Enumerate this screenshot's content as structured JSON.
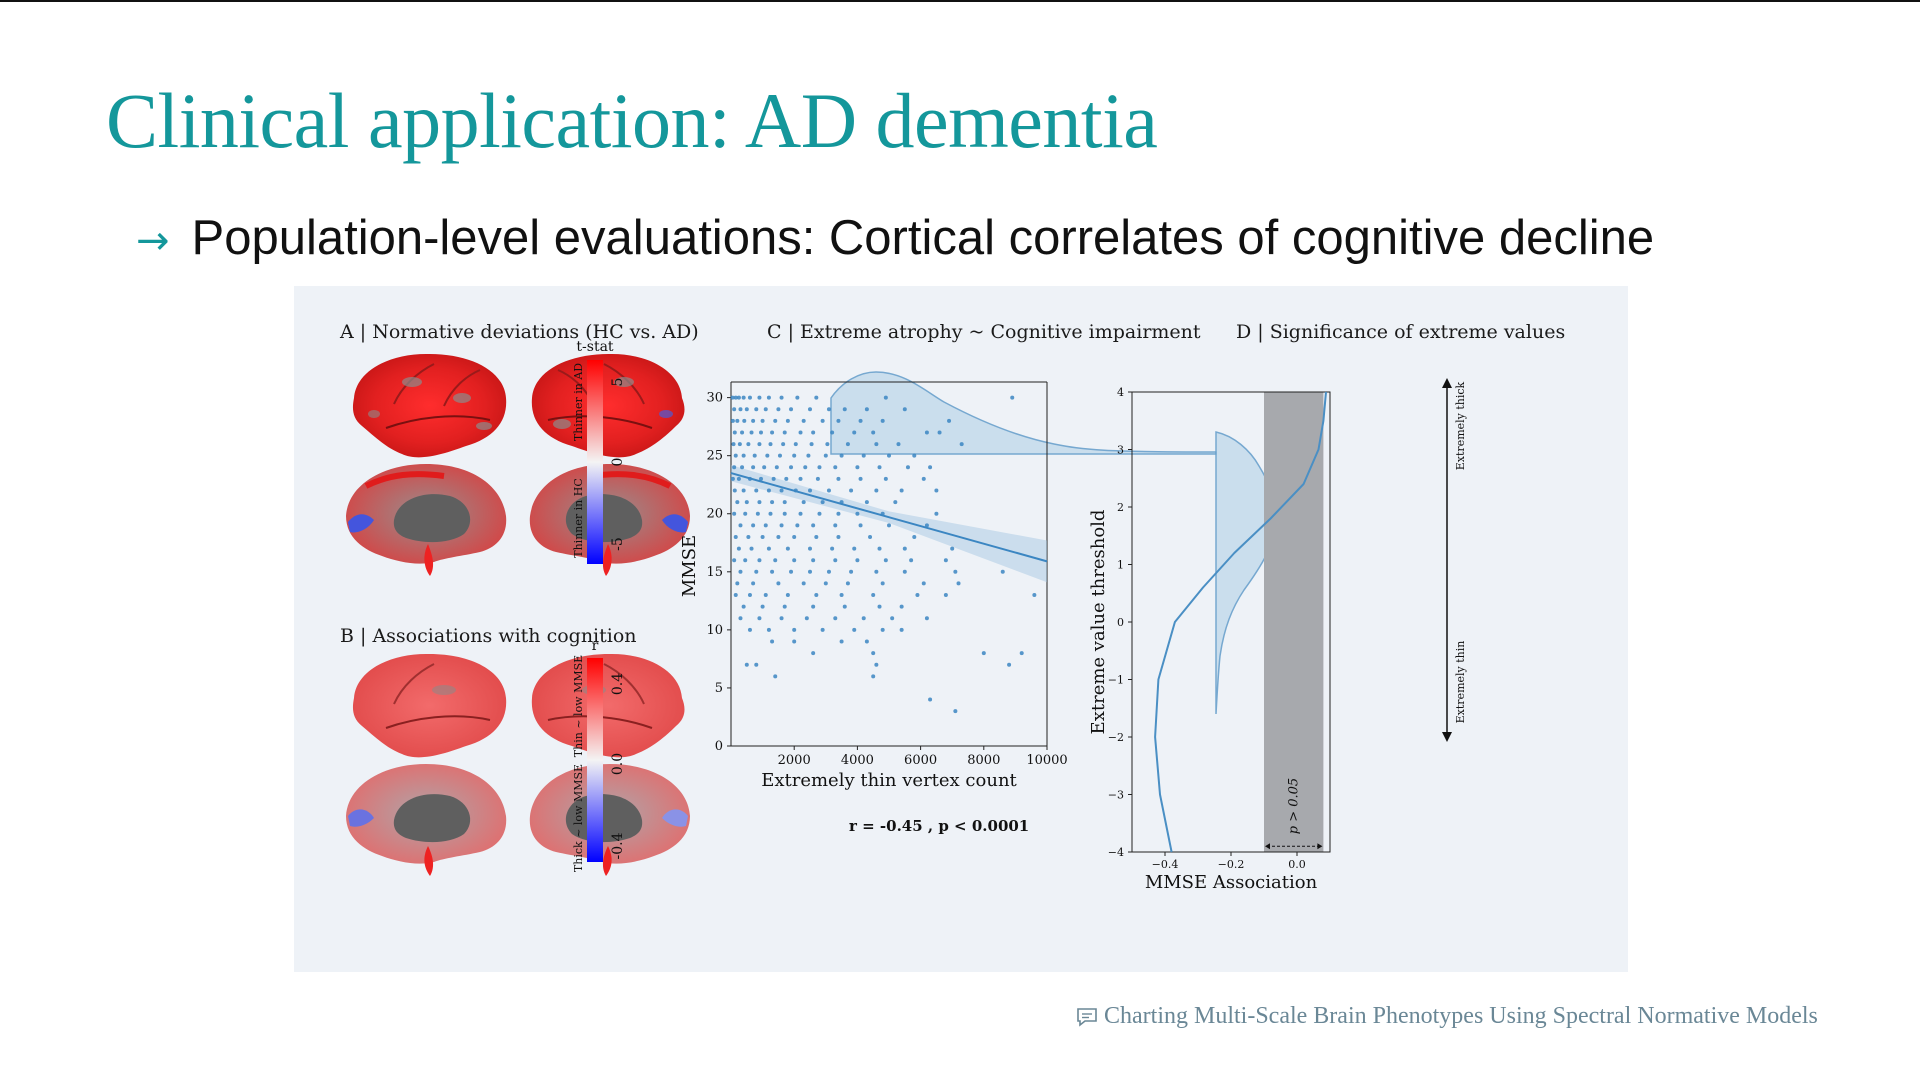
{
  "slide": {
    "title": "Clinical application: AD dementia",
    "bullet_arrow": "→",
    "bullet_text": "Population-level evaluations: Cortical correlates of cognitive decline",
    "footer_icon": "comment-icon",
    "footer_text": "Charting Multi-Scale Brain Phenotypes Using Spectral Normative Models",
    "accent_color": "#14979b"
  },
  "figure": {
    "panel_a": {
      "title": "A | Normative deviations (HC vs. AD)",
      "colorbar_title": "t-stat",
      "ticks": [
        "5",
        "0",
        "-5"
      ],
      "label_top": "Thinner in AD",
      "label_bottom": "Thinner in HC"
    },
    "panel_b": {
      "title": "B | Associations with cognition",
      "colorbar_title": "r",
      "ticks": [
        "0.4",
        "0.0",
        "-0.4"
      ],
      "label_top": "Thin ~ low MMSE",
      "label_bottom": "Thick ~ low MMSE"
    },
    "panel_c": {
      "title": "C | Extreme atrophy ~ Cognitive impairment",
      "annotation": "r = -0.45 , p < 0.0001"
    },
    "panel_d": {
      "title": "D | Significance of extreme values",
      "label_thick": "Extremely thick",
      "label_thin": "Extremely thin",
      "p_label": "p > 0.05"
    }
  },
  "chart_data": [
    {
      "type": "scatter",
      "xlabel": "Extremely thin vertex count",
      "ylabel": "MMSE",
      "xlim": [
        0,
        10000
      ],
      "ylim": [
        0,
        31
      ],
      "x_ticks": [
        2000,
        4000,
        6000,
        8000,
        10000
      ],
      "y_ticks": [
        0,
        5,
        10,
        15,
        20,
        25,
        30
      ],
      "grid": false,
      "regression": {
        "x": [
          0,
          10000
        ],
        "y": [
          23.5,
          15.9
        ]
      },
      "points": [
        [
          50,
          30
        ],
        [
          150,
          30
        ],
        [
          250,
          30
        ],
        [
          400,
          30
        ],
        [
          600,
          30
        ],
        [
          900,
          30
        ],
        [
          1200,
          30
        ],
        [
          1600,
          30
        ],
        [
          2100,
          30
        ],
        [
          2700,
          30
        ],
        [
          4900,
          30
        ],
        [
          8900,
          30
        ],
        [
          100,
          29
        ],
        [
          300,
          29
        ],
        [
          500,
          29
        ],
        [
          800,
          29
        ],
        [
          1100,
          29
        ],
        [
          1500,
          29
        ],
        [
          1900,
          29
        ],
        [
          2500,
          29
        ],
        [
          3100,
          29
        ],
        [
          3600,
          29
        ],
        [
          4300,
          29
        ],
        [
          5500,
          29
        ],
        [
          60,
          28
        ],
        [
          200,
          28
        ],
        [
          420,
          28
        ],
        [
          700,
          28
        ],
        [
          1000,
          28
        ],
        [
          1400,
          28
        ],
        [
          1800,
          28
        ],
        [
          2300,
          28
        ],
        [
          2900,
          28
        ],
        [
          3400,
          28
        ],
        [
          4100,
          28
        ],
        [
          4800,
          28
        ],
        [
          6900,
          28
        ],
        [
          120,
          27
        ],
        [
          350,
          27
        ],
        [
          650,
          27
        ],
        [
          950,
          27
        ],
        [
          1300,
          27
        ],
        [
          1700,
          27
        ],
        [
          2200,
          27
        ],
        [
          2600,
          27
        ],
        [
          3200,
          27
        ],
        [
          3900,
          27
        ],
        [
          4500,
          27
        ],
        [
          6200,
          27
        ],
        [
          6600,
          27
        ],
        [
          80,
          26
        ],
        [
          280,
          26
        ],
        [
          550,
          26
        ],
        [
          900,
          26
        ],
        [
          1250,
          26
        ],
        [
          1650,
          26
        ],
        [
          2050,
          26
        ],
        [
          2550,
          26
        ],
        [
          3050,
          26
        ],
        [
          3700,
          26
        ],
        [
          4600,
          26
        ],
        [
          5300,
          26
        ],
        [
          7300,
          26
        ],
        [
          150,
          25
        ],
        [
          400,
          25
        ],
        [
          750,
          25
        ],
        [
          1150,
          25
        ],
        [
          1550,
          25
        ],
        [
          2000,
          25
        ],
        [
          2450,
          25
        ],
        [
          3000,
          25
        ],
        [
          3500,
          25
        ],
        [
          4200,
          25
        ],
        [
          5000,
          25
        ],
        [
          5800,
          25
        ],
        [
          100,
          24
        ],
        [
          350,
          24
        ],
        [
          700,
          24
        ],
        [
          1050,
          24
        ],
        [
          1450,
          24
        ],
        [
          1900,
          24
        ],
        [
          2350,
          24
        ],
        [
          2800,
          24
        ],
        [
          3300,
          24
        ],
        [
          4000,
          24
        ],
        [
          4700,
          24
        ],
        [
          5600,
          24
        ],
        [
          6300,
          24
        ],
        [
          60,
          23
        ],
        [
          250,
          23
        ],
        [
          600,
          23
        ],
        [
          950,
          23
        ],
        [
          1350,
          23
        ],
        [
          1750,
          23
        ],
        [
          2200,
          23
        ],
        [
          2750,
          23
        ],
        [
          3400,
          23
        ],
        [
          4100,
          23
        ],
        [
          4900,
          23
        ],
        [
          6100,
          23
        ],
        [
          120,
          22
        ],
        [
          400,
          22
        ],
        [
          800,
          22
        ],
        [
          1200,
          22
        ],
        [
          1600,
          22
        ],
        [
          2050,
          22
        ],
        [
          2500,
          22
        ],
        [
          3100,
          22
        ],
        [
          3800,
          22
        ],
        [
          4600,
          22
        ],
        [
          5400,
          22
        ],
        [
          6500,
          22
        ],
        [
          200,
          21
        ],
        [
          500,
          21
        ],
        [
          900,
          21
        ],
        [
          1300,
          21
        ],
        [
          1700,
          21
        ],
        [
          2300,
          21
        ],
        [
          2900,
          21
        ],
        [
          3500,
          21
        ],
        [
          4300,
          21
        ],
        [
          5200,
          21
        ],
        [
          100,
          20
        ],
        [
          450,
          20
        ],
        [
          850,
          20
        ],
        [
          1250,
          20
        ],
        [
          1700,
          20
        ],
        [
          2200,
          20
        ],
        [
          2800,
          20
        ],
        [
          3400,
          20
        ],
        [
          4000,
          20
        ],
        [
          4800,
          20
        ],
        [
          6500,
          20
        ],
        [
          300,
          19
        ],
        [
          700,
          19
        ],
        [
          1100,
          19
        ],
        [
          1600,
          19
        ],
        [
          2100,
          19
        ],
        [
          2600,
          19
        ],
        [
          3300,
          19
        ],
        [
          4100,
          19
        ],
        [
          5000,
          19
        ],
        [
          6200,
          19
        ],
        [
          150,
          18
        ],
        [
          550,
          18
        ],
        [
          1000,
          18
        ],
        [
          1500,
          18
        ],
        [
          2000,
          18
        ],
        [
          2700,
          18
        ],
        [
          3400,
          18
        ],
        [
          4400,
          18
        ],
        [
          5800,
          18
        ],
        [
          250,
          17
        ],
        [
          650,
          17
        ],
        [
          1200,
          17
        ],
        [
          1800,
          17
        ],
        [
          2500,
          17
        ],
        [
          3200,
          17
        ],
        [
          3900,
          17
        ],
        [
          4700,
          17
        ],
        [
          5500,
          17
        ],
        [
          7000,
          17
        ],
        [
          100,
          16
        ],
        [
          450,
          16
        ],
        [
          900,
          16
        ],
        [
          1400,
          16
        ],
        [
          2000,
          16
        ],
        [
          2600,
          16
        ],
        [
          3300,
          16
        ],
        [
          4000,
          16
        ],
        [
          4900,
          16
        ],
        [
          5700,
          16
        ],
        [
          6800,
          16
        ],
        [
          300,
          15
        ],
        [
          800,
          15
        ],
        [
          1300,
          15
        ],
        [
          1900,
          15
        ],
        [
          2500,
          15
        ],
        [
          3100,
          15
        ],
        [
          3800,
          15
        ],
        [
          4600,
          15
        ],
        [
          5500,
          15
        ],
        [
          7100,
          15
        ],
        [
          8600,
          15
        ],
        [
          200,
          14
        ],
        [
          700,
          14
        ],
        [
          1500,
          14
        ],
        [
          2300,
          14
        ],
        [
          3000,
          14
        ],
        [
          3700,
          14
        ],
        [
          4800,
          14
        ],
        [
          6100,
          14
        ],
        [
          7200,
          14
        ],
        [
          150,
          13
        ],
        [
          600,
          13
        ],
        [
          1100,
          13
        ],
        [
          1800,
          13
        ],
        [
          2700,
          13
        ],
        [
          3500,
          13
        ],
        [
          4500,
          13
        ],
        [
          5900,
          13
        ],
        [
          6800,
          13
        ],
        [
          9600,
          13
        ],
        [
          400,
          12
        ],
        [
          1000,
          12
        ],
        [
          1700,
          12
        ],
        [
          2600,
          12
        ],
        [
          3600,
          12
        ],
        [
          4700,
          12
        ],
        [
          5400,
          12
        ],
        [
          300,
          11
        ],
        [
          900,
          11
        ],
        [
          1600,
          11
        ],
        [
          2400,
          11
        ],
        [
          3300,
          11
        ],
        [
          4200,
          11
        ],
        [
          5100,
          11
        ],
        [
          6200,
          11
        ],
        [
          600,
          10
        ],
        [
          1200,
          10
        ],
        [
          2000,
          10
        ],
        [
          2900,
          10
        ],
        [
          3900,
          10
        ],
        [
          4800,
          10
        ],
        [
          5400,
          10
        ],
        [
          1300,
          9
        ],
        [
          2000,
          9
        ],
        [
          3500,
          9
        ],
        [
          4300,
          9
        ],
        [
          2600,
          8
        ],
        [
          4500,
          8
        ],
        [
          8000,
          8
        ],
        [
          9200,
          8
        ],
        [
          500,
          7
        ],
        [
          800,
          7
        ],
        [
          4600,
          7
        ],
        [
          8800,
          7
        ],
        [
          1400,
          6
        ],
        [
          4500,
          6
        ],
        [
          6300,
          4
        ],
        [
          7100,
          3
        ]
      ]
    },
    {
      "type": "line",
      "xlabel": "MMSE Association",
      "ylabel": "Extreme value threshold",
      "xlim": [
        -0.5,
        0.1
      ],
      "ylim": [
        -4,
        4
      ],
      "x_ticks": [
        "−0.4",
        "−0.2",
        "0.0"
      ],
      "y_ticks": [
        "4",
        "3",
        "2",
        "1",
        "0",
        "−1",
        "−2",
        "−3",
        "−4"
      ],
      "shaded_x": [
        -0.1,
        0.08
      ],
      "series": [
        {
          "x": [
            -0.38,
            -0.415,
            -0.43,
            -0.42,
            -0.37,
            -0.285,
            -0.19,
            -0.08,
            0.02,
            0.065,
            0.08,
            0.088
          ],
          "y": [
            -4,
            -3,
            -2,
            -1,
            0,
            0.6,
            1.2,
            1.8,
            2.4,
            3.0,
            3.5,
            4.0
          ]
        }
      ]
    }
  ]
}
